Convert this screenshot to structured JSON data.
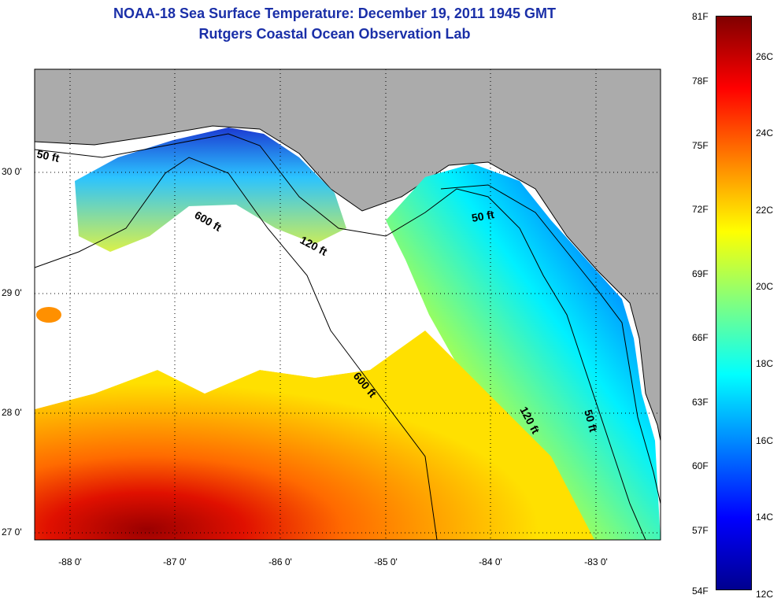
{
  "title": {
    "line1": "NOAA-18 Sea Surface Temperature:  December 19, 2011 1945 GMT",
    "line2": "Rutgers Coastal Ocean Observation Lab"
  },
  "axes": {
    "lat_labels": [
      "30 0'",
      "29 0'",
      "28 0'",
      "27 0'"
    ],
    "lon_labels": [
      "-88 0'",
      "-87 0'",
      "-86 0'",
      "-85 0'",
      "-84 0'",
      "-83 0'"
    ]
  },
  "contours": {
    "labels": [
      "50 ft",
      "600 ft",
      "120 ft",
      "50 ft",
      "600 ft",
      "120 ft",
      "50 ft"
    ]
  },
  "colorbar": {
    "fahrenheit": [
      "81F",
      "78F",
      "75F",
      "72F",
      "69F",
      "66F",
      "63F",
      "60F",
      "57F",
      "54F"
    ],
    "celsius": [
      "26C",
      "24C",
      "22C",
      "20C",
      "18C",
      "16C",
      "14C",
      "12C"
    ],
    "range_f": [
      54,
      81
    ],
    "range_c": [
      12,
      27
    ],
    "colors": [
      "#00008f",
      "#0000ff",
      "#0080ff",
      "#00ffff",
      "#80ff80",
      "#ffff00",
      "#ff8000",
      "#ff0000",
      "#800000"
    ]
  },
  "colors": {
    "land": "#ababab",
    "cloud": "#ffffff",
    "title": "#1a2fa8"
  }
}
